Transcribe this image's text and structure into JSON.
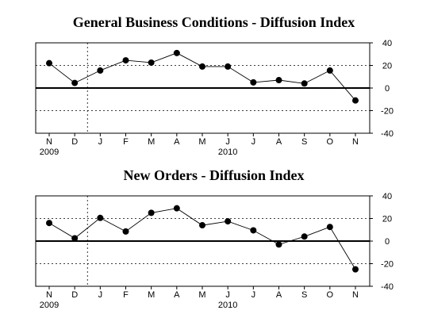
{
  "chart_data": [
    {
      "type": "line",
      "title": "General Business Conditions - Diffusion Index",
      "categories": [
        "N",
        "D",
        "J",
        "F",
        "M",
        "A",
        "M",
        "J",
        "J",
        "A",
        "S",
        "O",
        "N"
      ],
      "year_labels": [
        {
          "text": "2009",
          "at_index": 0
        },
        {
          "text": "2010",
          "at_index": 7
        }
      ],
      "series": [
        {
          "values": [
            22,
            4.5,
            15.5,
            24.5,
            22.5,
            31,
            19,
            19,
            5,
            7,
            4,
            15.5,
            -11
          ]
        }
      ],
      "ylim": [
        -40,
        40
      ],
      "yticks": [
        40,
        20,
        0,
        -20,
        -40
      ],
      "y_axis_side": "right",
      "grid": "dotted horizontal at ±20",
      "zero_line": true,
      "year_divider": "dotted vertical between D and J"
    },
    {
      "type": "line",
      "title": "New Orders - Diffusion Index",
      "categories": [
        "N",
        "D",
        "J",
        "F",
        "M",
        "A",
        "M",
        "J",
        "J",
        "A",
        "S",
        "O",
        "N"
      ],
      "year_labels": [
        {
          "text": "2009",
          "at_index": 0
        },
        {
          "text": "2010",
          "at_index": 7
        }
      ],
      "series": [
        {
          "values": [
            16,
            2.5,
            20.5,
            8.5,
            25,
            29,
            14,
            17.5,
            9.5,
            -3,
            4,
            12.5,
            -25
          ]
        }
      ],
      "ylim": [
        -40,
        40
      ],
      "yticks": [
        40,
        20,
        0,
        -20,
        -40
      ],
      "y_axis_side": "right",
      "grid": "dotted horizontal at ±20",
      "zero_line": true,
      "year_divider": "dotted vertical between D and J"
    }
  ]
}
